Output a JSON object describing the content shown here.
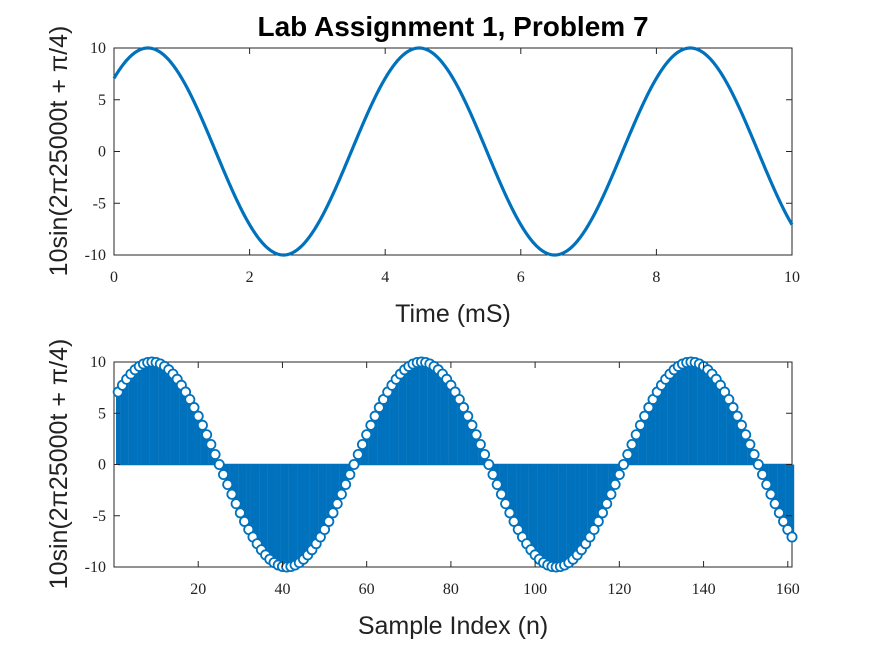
{
  "title": "Lab Assignment 1, Problem 7",
  "colors": {
    "series": "#0072BD",
    "axis": "#262626"
  },
  "chart_data": [
    {
      "type": "line",
      "xlabel": "Time (mS)",
      "ylabel": "10sin(2π25000t + π/4)",
      "xlim": [
        0,
        10
      ],
      "ylim": [
        -10,
        10
      ],
      "xticks": [
        "0",
        "2",
        "4",
        "6",
        "8",
        "10"
      ],
      "yticks": [
        "-10",
        "-5",
        "0",
        "5",
        "10"
      ],
      "series": [
        {
          "function": "10sin(2π25000t + π/4)",
          "amplitude": 10,
          "period_ms": 4,
          "phase": 0.7854,
          "x_range": [
            0,
            10
          ]
        }
      ]
    },
    {
      "type": "stem",
      "xlabel": "Sample Index (n)",
      "ylabel": "10sin(2π25000t + π/4)",
      "xlim": [
        0,
        161
      ],
      "ylim": [
        -10,
        10
      ],
      "xticks": [
        "20",
        "40",
        "60",
        "80",
        "100",
        "120",
        "140",
        "160"
      ],
      "yticks": [
        "-10",
        "-5",
        "0",
        "5",
        "10"
      ],
      "series": [
        {
          "function": "10sin(2π25000t + π/4)",
          "amplitude": 10,
          "period_samples": 64,
          "phase": 0.7854,
          "n_range": [
            1,
            161
          ]
        }
      ]
    }
  ]
}
